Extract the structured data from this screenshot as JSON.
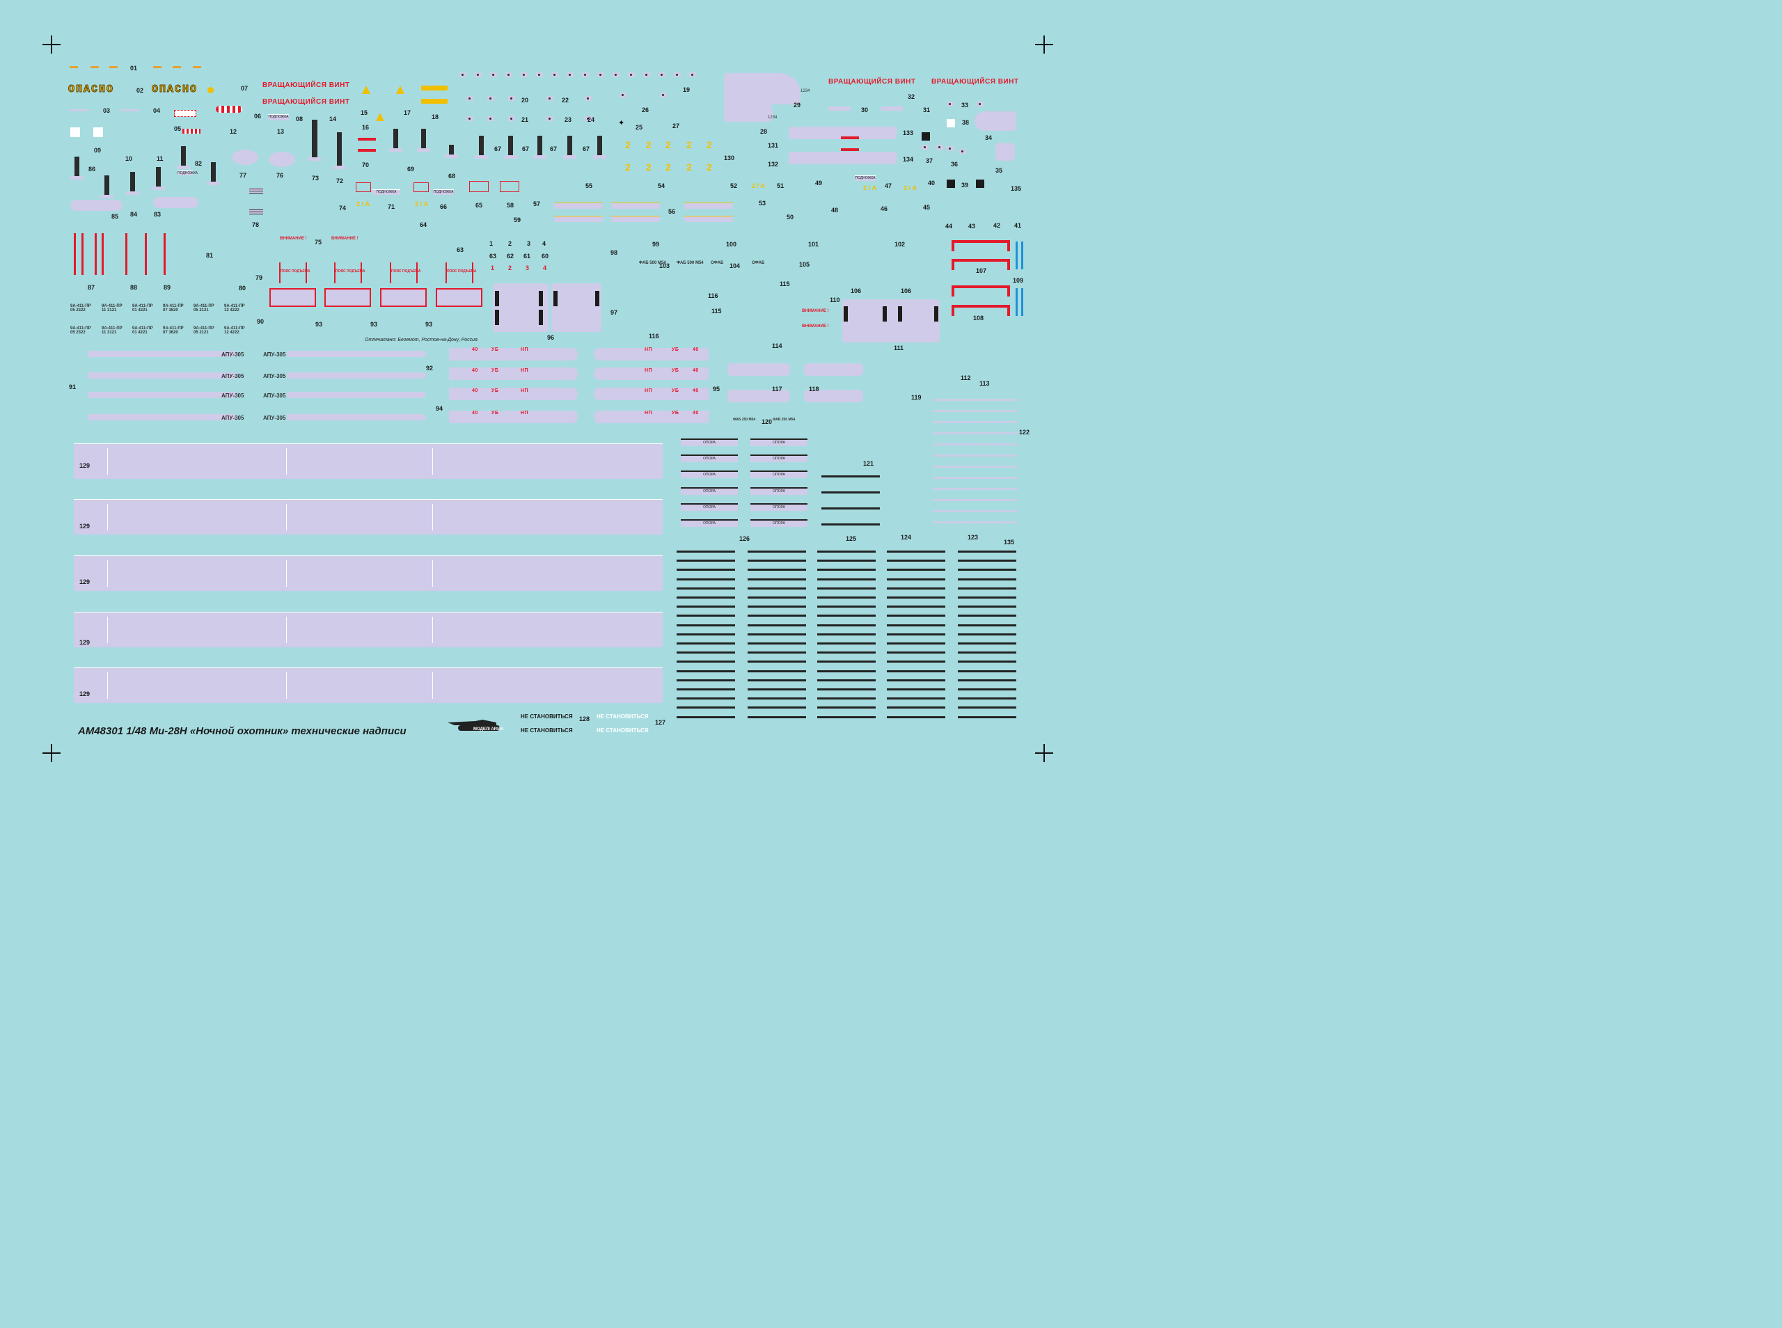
{
  "sheet": {
    "footer_title": "AM48301 1/48 Ми-28Н «Ночной охотник» технические надписи",
    "printed_note": "Отпечатано: Бегемот,  Ростов-на-Дону, Россия.",
    "brand": "МОДЕЛІ ARMA",
    "danger_word": "ОПАСНО",
    "rotor_warning": "ВРАЩАЮЩИЙСЯ ВИНТ",
    "do_not_step": "НЕ СТАНОВИТЬСЯ",
    "launcher": "АПУ-305",
    "support": "ОПОРА",
    "belt": "ПОЯС ПОДЪЕМА",
    "attention": "ВНИМАНИЕ !",
    "footrest": "ПОДНОЖКА",
    "mark_2a": "2 / А",
    "mark_2": "2",
    "ub": "УБ",
    "np": "НП",
    "forty": "40",
    "fab_500": "ФАБ 500 М54",
    "fab_250": "ФАБ 250 М54",
    "ofab": "ОФАБ",
    "missile_codes": [
      {
        "top": "9А-411-ПР",
        "bottom": "05 2322"
      },
      {
        "top": "9А-411-ПР",
        "bottom": "11 3121"
      },
      {
        "top": "9А-411-ПР",
        "bottom": "01 4221"
      },
      {
        "top": "9А-411-ПР",
        "bottom": "07 3620"
      },
      {
        "top": "9А-411-ПР",
        "bottom": "05 2121"
      },
      {
        "top": "9А-411-ПР",
        "bottom": "12 4222"
      }
    ],
    "numbers": {
      "n01": "01",
      "n02": "02",
      "n03": "03",
      "n04": "04",
      "n05": "05",
      "n06": "06",
      "n07": "07",
      "n08": "08",
      "n09": "09",
      "n10": "10",
      "n11": "11",
      "n12": "12",
      "n13": "13",
      "n14": "14",
      "n15": "15",
      "n16": "16",
      "n17": "17",
      "n18": "18",
      "n19": "19",
      "n20": "20",
      "n21": "21",
      "n22": "22",
      "n23": "23",
      "n24": "24",
      "n25": "25",
      "n26": "26",
      "n27": "27",
      "n28": "28",
      "n29": "29",
      "n30": "30",
      "n31": "31",
      "n32": "32",
      "n33": "33",
      "n34": "34",
      "n35": "35",
      "n36": "36",
      "n37": "37",
      "n38": "38",
      "n39": "39",
      "n40": "40",
      "n41": "41",
      "n42": "42",
      "n43": "43",
      "n44": "44",
      "n45": "45",
      "n46": "46",
      "n47": "47",
      "n48": "48",
      "n49": "49",
      "n50": "50",
      "n51": "51",
      "n52": "52",
      "n53": "53",
      "n54": "54",
      "n55": "55",
      "n56": "56",
      "n57": "57",
      "n58": "58",
      "n59": "59",
      "n60": "60",
      "n61": "61",
      "n62": "62",
      "n63": "63",
      "n64": "64",
      "n65": "65",
      "n66": "66",
      "n67": "67",
      "n68": "68",
      "n69": "69",
      "n70": "70",
      "n71": "71",
      "n72": "72",
      "n73": "73",
      "n74": "74",
      "n75": "75",
      "n76": "76",
      "n77": "77",
      "n78": "78",
      "n79": "79",
      "n80": "80",
      "n81": "81",
      "n82": "82",
      "n83": "83",
      "n84": "84",
      "n85": "85",
      "n86": "86",
      "n87": "87",
      "n88": "88",
      "n89": "89",
      "n90": "90",
      "n91": "91",
      "n92": "92",
      "n93": "93",
      "n94": "94",
      "n95": "95",
      "n96": "96",
      "n97": "97",
      "n98": "98",
      "n99": "99",
      "n100": "100",
      "n101": "101",
      "n102": "102",
      "n103": "103",
      "n104": "104",
      "n105": "105",
      "n106": "106",
      "n107": "107",
      "n108": "108",
      "n109": "109",
      "n110": "110",
      "n111": "111",
      "n112": "112",
      "n113": "113",
      "n114": "114",
      "n115": "115",
      "n116": "116",
      "n117": "117",
      "n118": "118",
      "n119": "119",
      "n120": "120",
      "n121": "121",
      "n122": "122",
      "n123": "123",
      "n124": "124",
      "n125": "125",
      "n126": "126",
      "n127": "127",
      "n128": "128",
      "n129": "129",
      "n130": "130",
      "n131": "131",
      "n132": "132",
      "n133": "133",
      "n134": "134",
      "n135": "135",
      "d1": "1",
      "d2": "2",
      "d3": "3",
      "d4": "4"
    },
    "colors": {
      "background": "#a6dce0",
      "decal_lavender": "#cfcbe9",
      "red": "#e31a2b",
      "yellow": "#f0c000",
      "blue": "#1e90d6"
    }
  }
}
